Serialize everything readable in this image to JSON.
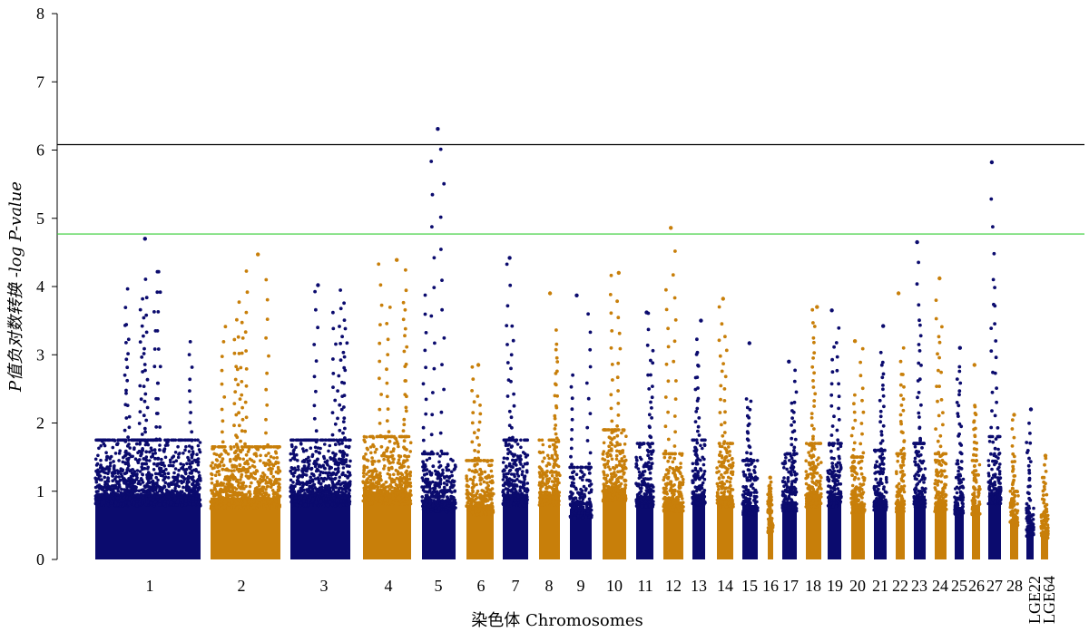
{
  "chart_data": {
    "type": "scatter",
    "subtype": "manhattan",
    "xlabel": "染色体 Chromosomes",
    "ylabel": "P值负对数转换 -log P-value",
    "ylim": [
      0,
      8
    ],
    "yticks": [
      "0",
      "1",
      "2",
      "3",
      "4",
      "5",
      "6",
      "7",
      "8"
    ],
    "grid": false,
    "colors": {
      "odd": "#0b0b6e",
      "even": "#c87f0a",
      "significance": "#000000",
      "suggestive": "#33cc33"
    },
    "thresholds": {
      "significance": 6.08,
      "suggestive": 4.77
    },
    "chromosomes": [
      {
        "label": "1",
        "peak": 4.7,
        "band": 1.75
      },
      {
        "label": "2",
        "peak": 4.47,
        "band": 1.65
      },
      {
        "label": "3",
        "peak": 4.02,
        "band": 1.75
      },
      {
        "label": "4",
        "peak": 4.39,
        "band": 1.8
      },
      {
        "label": "5",
        "peak": 6.31,
        "band": 1.55
      },
      {
        "label": "6",
        "peak": 2.85,
        "band": 1.45
      },
      {
        "label": "7",
        "peak": 4.42,
        "band": 1.75
      },
      {
        "label": "8",
        "peak": 3.9,
        "band": 1.75
      },
      {
        "label": "9",
        "peak": 3.87,
        "band": 1.35
      },
      {
        "label": "10",
        "peak": 4.2,
        "band": 1.9
      },
      {
        "label": "11",
        "peak": 3.62,
        "band": 1.7
      },
      {
        "label": "12",
        "peak": 4.86,
        "band": 1.55
      },
      {
        "label": "13",
        "peak": 3.5,
        "band": 1.75
      },
      {
        "label": "14",
        "peak": 3.82,
        "band": 1.7
      },
      {
        "label": "15",
        "peak": 3.17,
        "band": 1.45
      },
      {
        "label": "16",
        "peak": 1.2,
        "band": 0.85
      },
      {
        "label": "17",
        "peak": 2.9,
        "band": 1.55
      },
      {
        "label": "18",
        "peak": 3.7,
        "band": 1.7
      },
      {
        "label": "19",
        "peak": 3.65,
        "band": 1.7
      },
      {
        "label": "20",
        "peak": 3.2,
        "band": 1.5
      },
      {
        "label": "21",
        "peak": 3.42,
        "band": 1.6
      },
      {
        "label": "22",
        "peak": 3.9,
        "band": 1.55
      },
      {
        "label": "23",
        "peak": 4.65,
        "band": 1.7
      },
      {
        "label": "24",
        "peak": 4.12,
        "band": 1.55
      },
      {
        "label": "25",
        "peak": 3.1,
        "band": 1.4
      },
      {
        "label": "26",
        "peak": 2.85,
        "band": 1.45
      },
      {
        "label": "27",
        "peak": 5.82,
        "band": 1.8
      },
      {
        "label": "28",
        "peak": 2.12,
        "band": 1.0
      },
      {
        "label": "LGE22",
        "peak": 2.2,
        "band": 0.75
      },
      {
        "label": "LGE64",
        "peak": 1.52,
        "band": 0.7
      }
    ]
  }
}
